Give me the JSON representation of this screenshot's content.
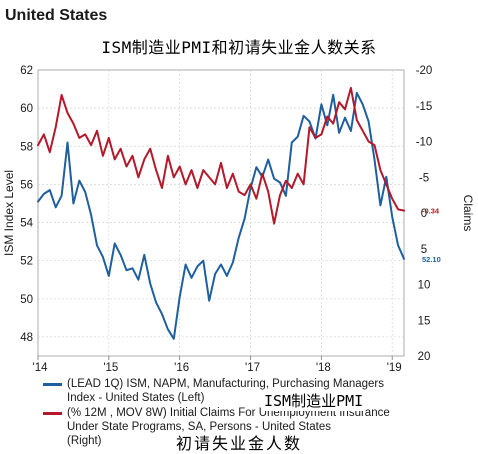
{
  "header": {
    "country": "United States",
    "overlay_title": "ISM制造业PMI和初请失业金人数关系"
  },
  "chart_data": {
    "type": "line",
    "x_tick_labels": [
      "'14",
      "'15",
      "'16",
      "'17",
      "'18",
      "'19"
    ],
    "xlim": [
      "2014-01",
      "2019-03"
    ],
    "left_axis": {
      "label": "ISM Index Level",
      "ylim": [
        47,
        62
      ],
      "ticks": [
        "62",
        "60",
        "58",
        "56",
        "54",
        "52",
        "50",
        "48"
      ]
    },
    "right_axis": {
      "label": "Claims",
      "ylim": [
        20,
        -20
      ],
      "inverted": true,
      "ticks": [
        "-20",
        "-15",
        "-10",
        "-5",
        "0",
        "5",
        "10",
        "15",
        "20"
      ]
    },
    "grid": true,
    "series": [
      {
        "name": "(LEAD 1Q) ISM, NAPM, Manufacturing, Purchasing Managers Index - United States    (Left)",
        "axis": "left",
        "color": "#1f5f9e",
        "end_label": "52.10",
        "x": [
          "2014-01",
          "2014-02",
          "2014-03",
          "2014-04",
          "2014-05",
          "2014-06",
          "2014-07",
          "2014-08",
          "2014-09",
          "2014-10",
          "2014-11",
          "2014-12",
          "2015-01",
          "2015-02",
          "2015-03",
          "2015-04",
          "2015-05",
          "2015-06",
          "2015-07",
          "2015-08",
          "2015-09",
          "2015-10",
          "2015-11",
          "2015-12",
          "2016-01",
          "2016-02",
          "2016-03",
          "2016-04",
          "2016-05",
          "2016-06",
          "2016-07",
          "2016-08",
          "2016-09",
          "2016-10",
          "2016-11",
          "2016-12",
          "2017-01",
          "2017-02",
          "2017-03",
          "2017-04",
          "2017-05",
          "2017-06",
          "2017-07",
          "2017-08",
          "2017-09",
          "2017-10",
          "2017-11",
          "2017-12",
          "2018-01",
          "2018-02",
          "2018-03",
          "2018-04",
          "2018-05",
          "2018-06",
          "2018-07",
          "2018-08",
          "2018-09",
          "2018-10",
          "2018-11",
          "2018-12",
          "2019-01",
          "2019-02",
          "2019-03"
        ],
        "values": [
          55.1,
          55.5,
          55.7,
          54.8,
          55.4,
          58.2,
          55.0,
          56.2,
          55.6,
          54.4,
          52.8,
          52.2,
          51.2,
          52.9,
          52.3,
          51.5,
          51.6,
          51.0,
          52.3,
          50.8,
          49.8,
          49.2,
          48.4,
          47.9,
          50.1,
          51.8,
          51.1,
          51.7,
          52.0,
          49.9,
          51.3,
          51.8,
          51.2,
          51.9,
          53.2,
          54.2,
          55.8,
          56.9,
          56.4,
          57.3,
          56.3,
          56.1,
          55.4,
          58.2,
          58.5,
          59.6,
          59.3,
          58.4,
          60.2,
          59.1,
          60.7,
          58.7,
          59.5,
          58.8,
          60.8,
          60.2,
          59.3,
          57.3,
          54.9,
          56.4,
          54.3,
          52.8,
          52.1
        ]
      },
      {
        "name": "(% 12M , MOV 8W) Initial Claims For Unemployment Insurance Under State Programs, SA, Persons - United States (Right)",
        "axis": "right",
        "color": "#b3192a",
        "end_label": "-0.34",
        "x": [
          "2014-01",
          "2014-02",
          "2014-03",
          "2014-04",
          "2014-05",
          "2014-06",
          "2014-07",
          "2014-08",
          "2014-09",
          "2014-10",
          "2014-11",
          "2014-12",
          "2015-01",
          "2015-02",
          "2015-03",
          "2015-04",
          "2015-05",
          "2015-06",
          "2015-07",
          "2015-08",
          "2015-09",
          "2015-10",
          "2015-11",
          "2015-12",
          "2016-01",
          "2016-02",
          "2016-03",
          "2016-04",
          "2016-05",
          "2016-06",
          "2016-07",
          "2016-08",
          "2016-09",
          "2016-10",
          "2016-11",
          "2016-12",
          "2017-01",
          "2017-02",
          "2017-03",
          "2017-04",
          "2017-05",
          "2017-06",
          "2017-07",
          "2017-08",
          "2017-09",
          "2017-10",
          "2017-11",
          "2017-12",
          "2018-01",
          "2018-02",
          "2018-03",
          "2018-04",
          "2018-05",
          "2018-06",
          "2018-07",
          "2018-08",
          "2018-09",
          "2018-10",
          "2018-11",
          "2018-12",
          "2019-01",
          "2019-02",
          "2019-03"
        ],
        "values": [
          -9.5,
          -11.0,
          -8.5,
          -12.0,
          -16.5,
          -14.0,
          -12.5,
          -10.5,
          -11.0,
          -9.5,
          -11.5,
          -8.0,
          -10.5,
          -7.5,
          -9.0,
          -6.5,
          -8.0,
          -5.0,
          -7.5,
          -9.0,
          -6.0,
          -3.5,
          -8.0,
          -5.0,
          -6.5,
          -4.0,
          -6.0,
          -3.5,
          -6.0,
          -5.0,
          -4.0,
          -7.0,
          -3.5,
          -5.5,
          -3.0,
          -2.5,
          -4.0,
          -2.0,
          -5.5,
          -3.0,
          1.5,
          -2.5,
          -4.5,
          -3.5,
          -5.5,
          -4.0,
          -12.0,
          -10.5,
          -11.0,
          -13.5,
          -12.5,
          -15.5,
          -14.5,
          -17.5,
          -13.0,
          -11.5,
          -10.0,
          -9.5,
          -6.0,
          -4.0,
          -2.0,
          -0.5,
          -0.34
        ]
      }
    ]
  },
  "legend": [
    {
      "text": "(LEAD 1Q) ISM, NAPM, Manufacturing, Purchasing Managers\nIndex - United States    (Left)",
      "color": "#1f5f9e"
    },
    {
      "text": "(% 12M , MOV 8W) Initial Claims For Unemployment Insurance\nUnder State Programs, SA, Persons - United States\n(Right)",
      "color": "#b3192a"
    }
  ],
  "annotations": {
    "overlay_series_1": "ISM制造业PMI",
    "overlay_series_2": "初请失业金人数"
  }
}
